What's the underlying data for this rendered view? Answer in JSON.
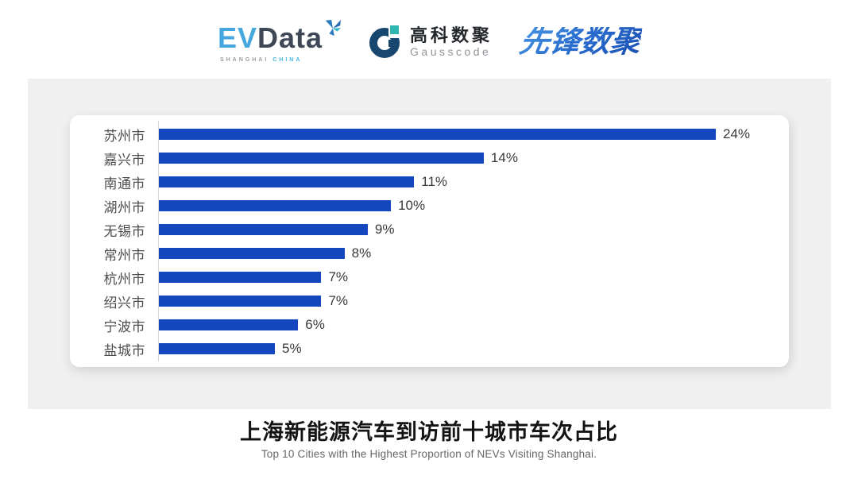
{
  "header": {
    "evdata": {
      "ev": "EV",
      "data": "Data",
      "sub_left": "SHANGHAI",
      "sub_right": "CHINA"
    },
    "gausscode": {
      "cn": "高科数聚",
      "en": "Gausscode"
    },
    "pioneer": {
      "text": "先锋数聚"
    }
  },
  "chart_data": {
    "type": "bar",
    "orientation": "horizontal",
    "categories": [
      "苏州市",
      "嘉兴市",
      "南通市",
      "湖州市",
      "无锡市",
      "常州市",
      "杭州市",
      "绍兴市",
      "宁波市",
      "盐城市"
    ],
    "values": [
      24,
      14,
      11,
      10,
      9,
      8,
      7,
      7,
      6,
      5
    ],
    "value_labels": [
      "24%",
      "14%",
      "11%",
      "10%",
      "9%",
      "8%",
      "7%",
      "7%",
      "6%",
      "5%"
    ],
    "xlim": [
      0,
      24
    ],
    "grid": false,
    "legend": "none",
    "bar_color": "#1447bd",
    "title": "上海新能源汽车到访前十城市车次占比",
    "subtitle": "Top 10 Cities with the Highest Proportion of  NEVs Visiting Shanghai.",
    "xlabel": "",
    "ylabel": ""
  },
  "colors": {
    "panel_bg": "#f0f0f0",
    "card_bg": "#ffffff",
    "axis": "#d9d9d9",
    "category_label": "#4d4d4d",
    "value_label": "#3a3a3a",
    "ev_blue": "#45a7dd",
    "data_slate": "#3e4756",
    "gauss_navy": "#17476f",
    "gauss_teal": "#2fb5b2",
    "pioneer_blue": "#2a6fd0"
  }
}
